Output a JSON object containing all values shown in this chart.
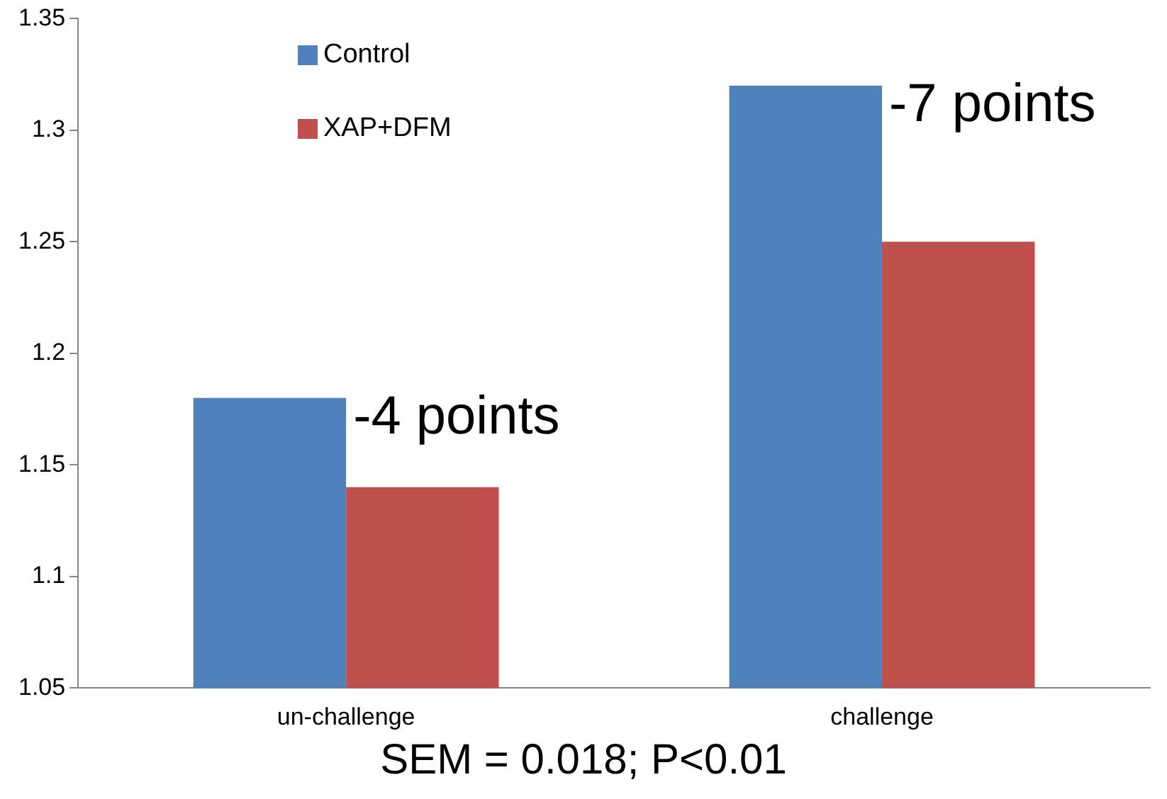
{
  "chart_data": {
    "type": "bar",
    "categories": [
      "un-challenge",
      "challenge"
    ],
    "series": [
      {
        "name": "Control",
        "color": "#4f81bd",
        "values": [
          1.18,
          1.32
        ]
      },
      {
        "name": "XAP+DFM",
        "color": "#c0504d",
        "values": [
          1.14,
          1.25
        ]
      }
    ],
    "ylim": [
      1.05,
      1.35
    ],
    "yticks": [
      1.05,
      {
        "value": 1.1,
        "label": "1.1"
      },
      1.15,
      {
        "value": 1.2,
        "label": "1.2"
      },
      1.25,
      {
        "value": 1.3,
        "label": "1.3"
      },
      1.35
    ],
    "legend": "top left",
    "annotations": [
      "-4 points",
      "-7 points",
      "SEM = 0.018; P<0.01"
    ]
  }
}
